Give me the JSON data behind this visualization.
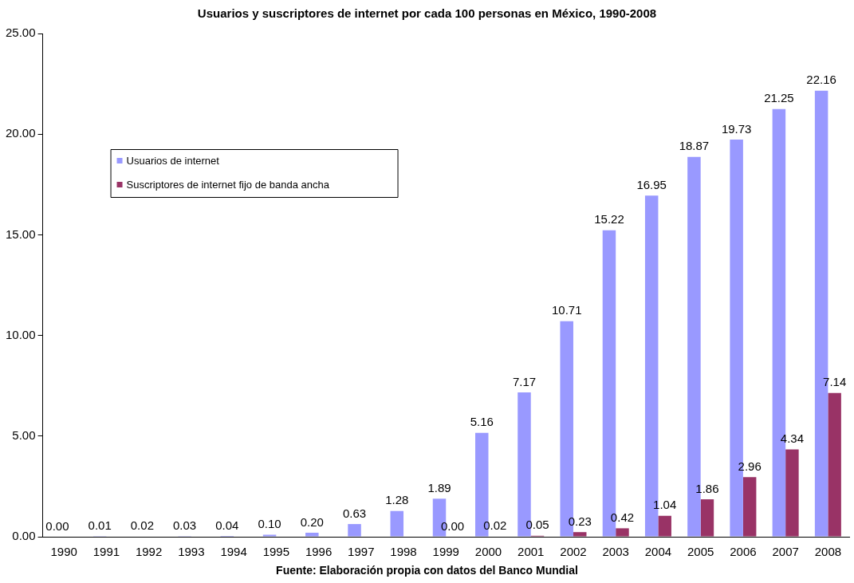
{
  "chart_data": {
    "type": "bar",
    "title": "Usuarios y suscriptores de internet por cada 100 personas en México, 1990-2008",
    "categories": [
      "1990",
      "1991",
      "1992",
      "1993",
      "1994",
      "1995",
      "1996",
      "1997",
      "1998",
      "1999",
      "2000",
      "2001",
      "2002",
      "2003",
      "2004",
      "2005",
      "2006",
      "2007",
      "2008"
    ],
    "series": [
      {
        "name": "Usuarios de internet",
        "color": "#9999ff",
        "values": [
          0.0,
          0.01,
          0.02,
          0.03,
          0.04,
          0.1,
          0.2,
          0.63,
          1.28,
          1.89,
          5.16,
          7.17,
          10.71,
          15.22,
          16.95,
          18.87,
          19.73,
          21.25,
          22.16
        ],
        "value_labels": [
          "0.00",
          "0.01",
          "0.02",
          "0.03",
          "0.04",
          "0.10",
          "0.20",
          "0.63",
          "1.28",
          "1.89",
          "5.16",
          "7.17",
          "10.71",
          "15.22",
          "16.95",
          "18.87",
          "19.73",
          "21.25",
          "22.16"
        ]
      },
      {
        "name": "Suscriptores de internet fijo de banda ancha",
        "color": "#993366",
        "values": [
          null,
          null,
          null,
          null,
          null,
          null,
          null,
          null,
          null,
          0.0,
          0.02,
          0.05,
          0.23,
          0.42,
          1.04,
          1.86,
          2.96,
          4.34,
          7.14
        ],
        "value_labels": [
          null,
          null,
          null,
          null,
          null,
          null,
          null,
          null,
          null,
          "0.00",
          "0.02",
          "0.05",
          "0.23",
          "0.42",
          "1.04",
          "1.86",
          "2.96",
          "4.34",
          "7.14"
        ]
      }
    ],
    "ylim": [
      0,
      25
    ],
    "yticks": [
      {
        "value": 0,
        "label": "0.00"
      },
      {
        "value": 5,
        "label": "5.00"
      },
      {
        "value": 10,
        "label": "10.00"
      },
      {
        "value": 15,
        "label": "15.00"
      },
      {
        "value": 20,
        "label": "20.00"
      },
      {
        "value": 25,
        "label": "25.00"
      }
    ],
    "grid": false,
    "legend": "top left",
    "annotations": [
      "Fuente: Elaboración propia con datos del Banco Mundial"
    ]
  }
}
